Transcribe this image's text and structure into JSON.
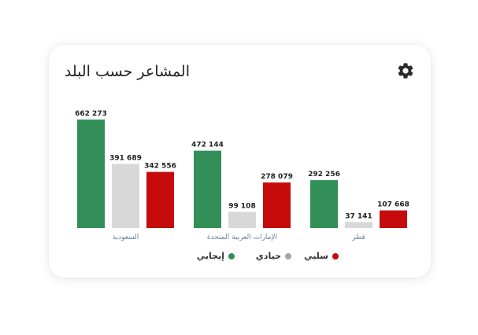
{
  "card": {
    "title": "المشاعر حسب البلد"
  },
  "icons": {
    "settings": "gear-icon"
  },
  "colors": {
    "positive": "#338f58",
    "neutral": "#d8d8d8",
    "negative": "#c50b0b"
  },
  "legend": {
    "positive": "إيجابي",
    "neutral": "حيادي",
    "negative": "سلبي",
    "neutral_dot": "#9fa6b2"
  },
  "chart_data": {
    "type": "bar",
    "categories": [
      "السعودية",
      "الإمارات العربية المتحدة",
      "قطر"
    ],
    "series": [
      {
        "name": "إيجابي",
        "values": [
          662273,
          472144,
          292256
        ],
        "labels": [
          "662 273",
          "472 144",
          "292 256"
        ]
      },
      {
        "name": "حيادي",
        "values": [
          391689,
          99108,
          37141
        ],
        "labels": [
          "391 689",
          "99 108",
          "37 141"
        ]
      },
      {
        "name": "سلبي",
        "values": [
          342556,
          278079,
          107668
        ],
        "labels": [
          "342 556",
          "278 079",
          "107 668"
        ]
      }
    ],
    "title": "المشاعر حسب البلد",
    "xlabel": "",
    "ylabel": "",
    "ylim": [
      0,
      662273
    ],
    "grid": false,
    "legend_position": "bottom-center"
  }
}
